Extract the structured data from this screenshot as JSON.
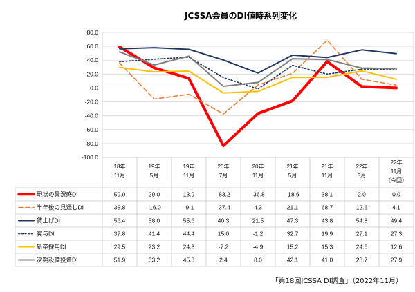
{
  "chart_data": {
    "type": "line",
    "title": "JCSSA会員のDI値時系列変化",
    "ylim": [
      -100,
      80
    ],
    "yticks": [
      "80.0",
      "60.0",
      "40.0",
      "20.0",
      "0.0",
      "-20.0",
      "-40.0",
      "-60.0",
      "-80.0",
      "-100.0"
    ],
    "categories": [
      {
        "year": "18年",
        "month": "11月"
      },
      {
        "year": "19年",
        "month": "5月"
      },
      {
        "year": "19年",
        "month": "11月"
      },
      {
        "year": "20年",
        "month": "7月"
      },
      {
        "year": "20年",
        "month": "11月"
      },
      {
        "year": "21年",
        "month": "5月"
      },
      {
        "year": "21年",
        "month": "11月"
      },
      {
        "year": "22年",
        "month": "5月"
      },
      {
        "year": "22年",
        "month": "11月",
        "note": "（今回）"
      }
    ],
    "series": [
      {
        "name": "現状の景況感DI",
        "color": "#ff0000",
        "dash": "solid",
        "width": 4,
        "values": [
          59.0,
          29.0,
          13.9,
          -83.2,
          -36.8,
          -18.6,
          38.1,
          2.0,
          0.0
        ],
        "labels": [
          "59.0",
          "29.0",
          "13.9",
          "-83.2",
          "-36.8",
          "-18.6",
          "38.1",
          "2.0",
          "0.0"
        ]
      },
      {
        "name": "半年後の見通しDI",
        "color": "#ed7d31",
        "dash": "dashed",
        "width": 1.6,
        "values": [
          35.8,
          -16.0,
          -9.1,
          -37.4,
          4.3,
          21.1,
          68.7,
          12.6,
          4.1
        ],
        "labels": [
          "35.8",
          "-16.0",
          "-9.1",
          "-37.4",
          "4.3",
          "21.1",
          "68.7",
          "12.6",
          "4.1"
        ]
      },
      {
        "name": "賃上げDI",
        "color": "#1f3864",
        "dash": "solid",
        "width": 2,
        "values": [
          56.4,
          58.0,
          55.6,
          40.3,
          21.5,
          47.3,
          43.8,
          54.8,
          49.4
        ],
        "labels": [
          "56.4",
          "58.0",
          "55.6",
          "40.3",
          "21.5",
          "47.3",
          "43.8",
          "54.8",
          "49.4"
        ]
      },
      {
        "name": "賞与DI",
        "color": "#1f3864",
        "dash": "dotted",
        "width": 1.8,
        "values": [
          37.8,
          41.4,
          44.4,
          15.0,
          -1.2,
          32.7,
          19.9,
          27.1,
          27.3
        ],
        "labels": [
          "37.8",
          "41.4",
          "44.4",
          "15.0",
          "-1.2",
          "32.7",
          "19.9",
          "27.1",
          "27.3"
        ]
      },
      {
        "name": "新卒採用DI",
        "color": "#ffc000",
        "dash": "solid",
        "width": 2,
        "values": [
          29.5,
          23.2,
          24.3,
          -7.2,
          -4.9,
          15.2,
          15.3,
          24.6,
          12.6
        ],
        "labels": [
          "29.5",
          "23.2",
          "24.3",
          "-7.2",
          "-4.9",
          "15.2",
          "15.3",
          "24.6",
          "12.6"
        ]
      },
      {
        "name": "次期設備投資DI",
        "color": "#7f7f7f",
        "dash": "solid",
        "width": 2,
        "values": [
          51.9,
          33.2,
          45.8,
          2.4,
          8.0,
          42.1,
          41.0,
          28.7,
          27.9
        ],
        "labels": [
          "51.9",
          "33.2",
          "45.8",
          "2.4",
          "8.0",
          "42.1",
          "41.0",
          "28.7",
          "27.9"
        ]
      }
    ],
    "source": "「第18回JCSSA DI調査」（2022年11月）"
  }
}
